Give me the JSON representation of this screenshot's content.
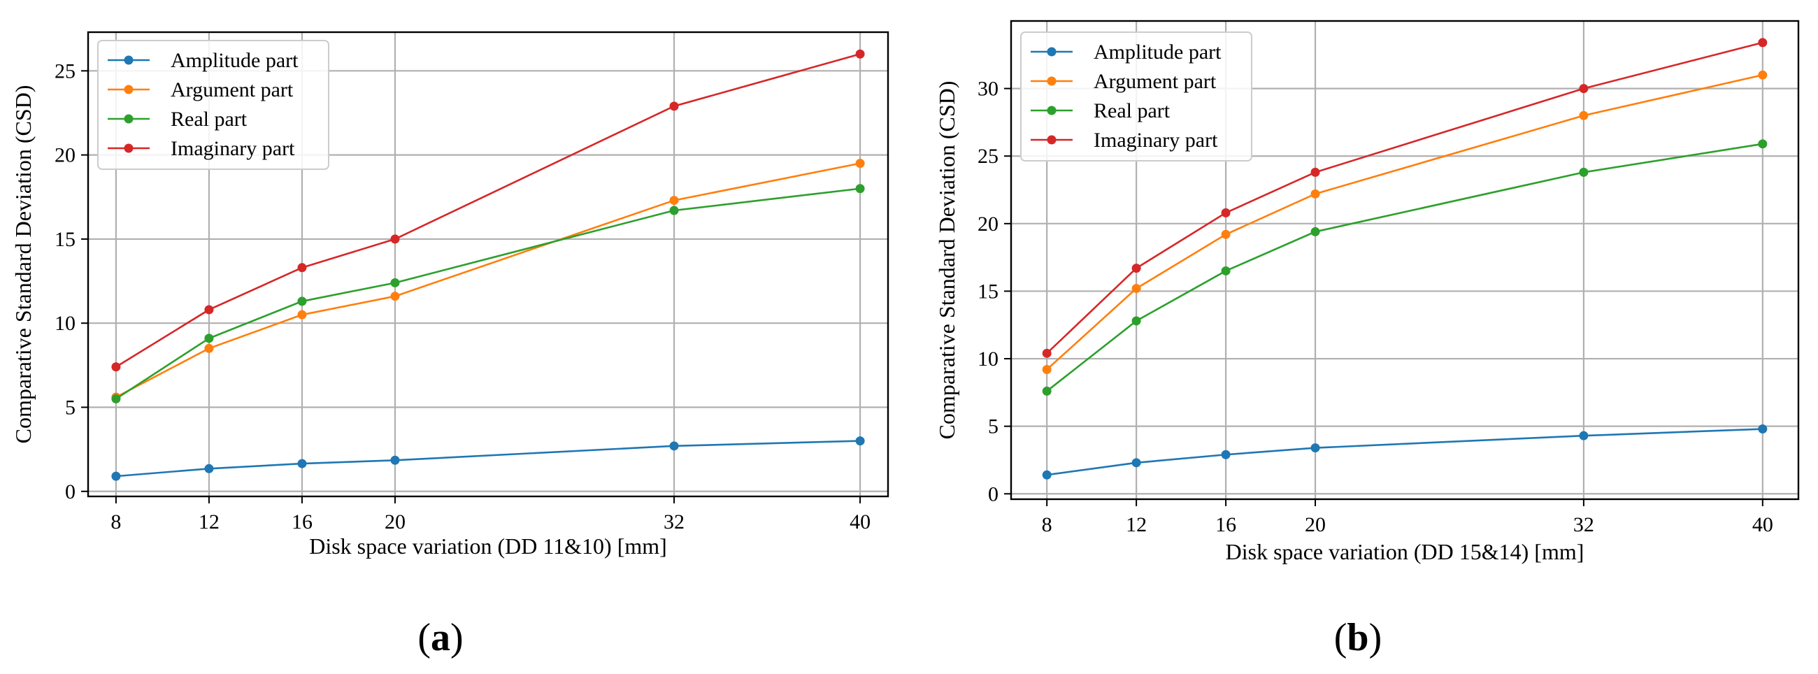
{
  "colors": {
    "amplitude": "#1f77b4",
    "argument": "#ff7f0e",
    "real": "#2ca02c",
    "imaginary": "#d62728",
    "grid": "#b0b0b0",
    "axes": "#000000"
  },
  "panels": [
    {
      "label": "(",
      "letter": "a",
      "close": ")"
    },
    {
      "label": "(",
      "letter": "b",
      "close": ")"
    }
  ],
  "chart_data": [
    {
      "type": "line",
      "panel": "a",
      "title": "",
      "xlabel": "Disk space variation (DD 11&10) [mm]",
      "ylabel": "Comparative Standard Deviation (CSD)",
      "x": [
        8,
        12,
        16,
        20,
        32,
        40
      ],
      "x_tick_labels": [
        "8",
        "12",
        "16",
        "20",
        "32",
        "40"
      ],
      "xlim": [
        6.8,
        41.2
      ],
      "ylim": [
        -0.3,
        27.3
      ],
      "yticks": [
        0,
        5,
        10,
        15,
        20,
        25
      ],
      "grid": true,
      "legend_position": "top-left",
      "series": [
        {
          "name": "Amplitude part",
          "color_key": "amplitude",
          "values": [
            0.9,
            1.35,
            1.65,
            1.85,
            2.7,
            3.0
          ]
        },
        {
          "name": "Argument part",
          "color_key": "argument",
          "values": [
            5.6,
            8.5,
            10.5,
            11.6,
            17.3,
            19.5
          ]
        },
        {
          "name": "Real part",
          "color_key": "real",
          "values": [
            5.5,
            9.1,
            11.3,
            12.4,
            16.7,
            18.0
          ]
        },
        {
          "name": "Imaginary part",
          "color_key": "imaginary",
          "values": [
            7.4,
            10.8,
            13.3,
            15.0,
            22.9,
            26.0
          ]
        }
      ]
    },
    {
      "type": "line",
      "panel": "b",
      "title": "",
      "xlabel": "Disk space variation (DD 15&14) [mm]",
      "ylabel": "Comparative Standard Deviation (CSD)",
      "x": [
        8,
        12,
        16,
        20,
        32,
        40
      ],
      "x_tick_labels": [
        "8",
        "12",
        "16",
        "20",
        "32",
        "40"
      ],
      "xlim": [
        6.4,
        41.6
      ],
      "ylim": [
        -0.4,
        35.0
      ],
      "yticks": [
        0,
        5,
        10,
        15,
        20,
        25,
        30
      ],
      "grid": true,
      "legend_position": "top-left",
      "series": [
        {
          "name": "Amplitude part",
          "color_key": "amplitude",
          "values": [
            1.4,
            2.3,
            2.9,
            3.4,
            4.3,
            4.8
          ]
        },
        {
          "name": "Argument part",
          "color_key": "argument",
          "values": [
            9.2,
            15.2,
            19.2,
            22.2,
            28.0,
            31.0
          ]
        },
        {
          "name": "Real part",
          "color_key": "real",
          "values": [
            7.6,
            12.8,
            16.5,
            19.4,
            23.8,
            25.9
          ]
        },
        {
          "name": "Imaginary part",
          "color_key": "imaginary",
          "values": [
            10.4,
            16.7,
            20.8,
            23.8,
            30.0,
            33.4
          ]
        }
      ]
    }
  ]
}
